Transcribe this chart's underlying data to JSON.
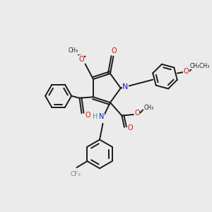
{
  "background_color": "#ebebeb",
  "bond_color": "#1a1a1a",
  "nitrogen_color": "#1515cc",
  "oxygen_color": "#cc1515",
  "fluorine_color": "#cc44cc",
  "hydrogen_color": "#4a9a9a",
  "figsize": [
    3.0,
    3.0
  ],
  "dpi": 100,
  "xlim": [
    0,
    10
  ],
  "ylim": [
    0,
    10
  ]
}
